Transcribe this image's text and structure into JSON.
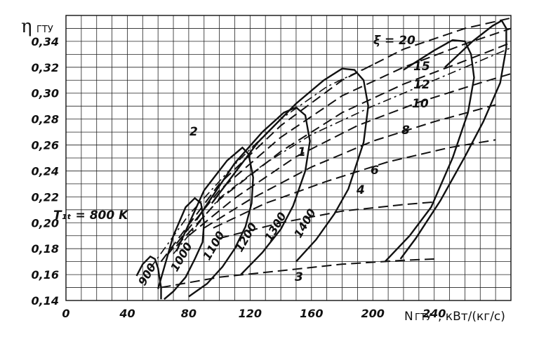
{
  "chart_data": {
    "type": "line",
    "y_label_symbol": "η",
    "y_label_sub": "ГТУ",
    "x_label_main": "N",
    "x_label_sub": "ГТУ",
    "x_label_unit": ", кВт/(кг/с)",
    "xlim": [
      0,
      290
    ],
    "ylim": [
      0.14,
      0.36
    ],
    "x_ticks": [
      "0",
      "40",
      "80",
      "120",
      "160",
      "200",
      "240"
    ],
    "x_tick_values": [
      0,
      40,
      80,
      120,
      160,
      200,
      240
    ],
    "y_ticks": [
      "0,14",
      "0,16",
      "0,18",
      "0,20",
      "0,22",
      "0,24",
      "0,26",
      "0,28",
      "0,30",
      "0,32",
      "0,34"
    ],
    "y_tick_values": [
      0.14,
      0.16,
      0.18,
      0.2,
      0.22,
      0.24,
      0.26,
      0.28,
      0.3,
      0.32,
      0.34
    ],
    "grid": true,
    "temperature_label": "T₁ₜ = 800 K",
    "xi_label": "ξ = 20",
    "temperature_curves": [
      {
        "name": "800",
        "label": "",
        "points": [
          [
            46,
            0.159
          ],
          [
            50,
            0.168
          ],
          [
            55,
            0.174
          ],
          [
            58,
            0.172
          ],
          [
            60,
            0.165
          ],
          [
            61,
            0.157
          ],
          [
            62,
            0.15
          ],
          [
            62,
            0.141
          ]
        ]
      },
      {
        "name": "900",
        "label": "900",
        "points": [
          [
            60,
            0.149
          ],
          [
            70,
            0.19
          ],
          [
            78,
            0.212
          ],
          [
            84,
            0.219
          ],
          [
            88,
            0.215
          ],
          [
            90,
            0.2
          ],
          [
            89,
            0.185
          ],
          [
            84,
            0.172
          ],
          [
            78,
            0.158
          ],
          [
            70,
            0.147
          ],
          [
            64,
            0.141
          ]
        ]
      },
      {
        "name": "1000",
        "label": "1000",
        "points": [
          [
            72,
            0.178
          ],
          [
            90,
            0.225
          ],
          [
            105,
            0.248
          ],
          [
            115,
            0.258
          ],
          [
            119,
            0.253
          ],
          [
            122,
            0.235
          ],
          [
            121,
            0.215
          ],
          [
            117,
            0.197
          ],
          [
            110,
            0.18
          ],
          [
            102,
            0.166
          ],
          [
            92,
            0.153
          ],
          [
            80,
            0.143
          ]
        ]
      },
      {
        "name": "1100",
        "label": "1100",
        "points": [
          [
            85,
            0.202
          ],
          [
            110,
            0.246
          ],
          [
            128,
            0.27
          ],
          [
            142,
            0.285
          ],
          [
            150,
            0.289
          ],
          [
            156,
            0.283
          ],
          [
            159,
            0.263
          ],
          [
            156,
            0.24
          ],
          [
            148,
            0.213
          ],
          [
            140,
            0.195
          ],
          [
            128,
            0.177
          ],
          [
            114,
            0.16
          ]
        ]
      },
      {
        "name": "1200",
        "label": "1200",
        "points": [
          [
            95,
            0.215
          ],
          [
            125,
            0.262
          ],
          [
            150,
            0.292
          ],
          [
            168,
            0.31
          ],
          [
            180,
            0.319
          ],
          [
            188,
            0.318
          ],
          [
            194,
            0.31
          ],
          [
            197,
            0.29
          ],
          [
            194,
            0.262
          ],
          [
            184,
            0.226
          ],
          [
            175,
            0.207
          ],
          [
            163,
            0.187
          ],
          [
            150,
            0.17
          ]
        ]
      },
      {
        "name": "1300",
        "label": "1300",
        "points": [
          [
            220,
            0.318
          ],
          [
            240,
            0.333
          ],
          [
            252,
            0.341
          ],
          [
            260,
            0.34
          ],
          [
            264,
            0.33
          ],
          [
            266,
            0.312
          ],
          [
            262,
            0.285
          ],
          [
            252,
            0.25
          ],
          [
            238,
            0.212
          ],
          [
            224,
            0.19
          ],
          [
            208,
            0.17
          ]
        ]
      },
      {
        "name": "1400",
        "label": "1400",
        "points": [
          [
            247,
            0.32
          ],
          [
            265,
            0.34
          ],
          [
            278,
            0.352
          ],
          [
            284,
            0.356
          ],
          [
            287,
            0.35
          ],
          [
            287,
            0.335
          ],
          [
            283,
            0.308
          ],
          [
            272,
            0.278
          ],
          [
            260,
            0.251
          ],
          [
            244,
            0.217
          ],
          [
            228,
            0.188
          ],
          [
            218,
            0.172
          ]
        ]
      }
    ],
    "xi_curves": [
      {
        "name": "20",
        "label": "",
        "points": [
          [
            62,
            0.17
          ],
          [
            100,
            0.23
          ],
          [
            140,
            0.275
          ],
          [
            180,
            0.31
          ],
          [
            220,
            0.334
          ],
          [
            260,
            0.35
          ],
          [
            290,
            0.358
          ]
        ]
      },
      {
        "name": "15",
        "label": "15",
        "points": [
          [
            66,
            0.175
          ],
          [
            100,
            0.225
          ],
          [
            140,
            0.266
          ],
          [
            180,
            0.298
          ],
          [
            220,
            0.32
          ],
          [
            260,
            0.338
          ],
          [
            290,
            0.35
          ]
        ]
      },
      {
        "name": "12",
        "label": "12",
        "points": [
          [
            72,
            0.182
          ],
          [
            100,
            0.218
          ],
          [
            140,
            0.255
          ],
          [
            180,
            0.285
          ],
          [
            220,
            0.307
          ],
          [
            260,
            0.325
          ],
          [
            290,
            0.339
          ]
        ]
      },
      {
        "name": "10",
        "label": "10",
        "points": [
          [
            80,
            0.19
          ],
          [
            110,
            0.219
          ],
          [
            150,
            0.251
          ],
          [
            190,
            0.275
          ],
          [
            230,
            0.293
          ],
          [
            270,
            0.308
          ],
          [
            290,
            0.315
          ]
        ]
      },
      {
        "name": "8",
        "label": "8",
        "points": [
          [
            90,
            0.196
          ],
          [
            120,
            0.218
          ],
          [
            160,
            0.243
          ],
          [
            200,
            0.263
          ],
          [
            240,
            0.278
          ],
          [
            280,
            0.291
          ]
        ]
      },
      {
        "name": "6",
        "label": "6",
        "points": [
          [
            96,
            0.196
          ],
          [
            130,
            0.215
          ],
          [
            170,
            0.232
          ],
          [
            210,
            0.247
          ],
          [
            250,
            0.258
          ],
          [
            280,
            0.264
          ]
        ]
      },
      {
        "name": "4",
        "label": "4",
        "points": [
          [
            100,
            0.188
          ],
          [
            140,
            0.2
          ],
          [
            180,
            0.209
          ],
          [
            220,
            0.214
          ],
          [
            240,
            0.216
          ]
        ]
      },
      {
        "name": "3",
        "label": "3",
        "points": [
          [
            62,
            0.15
          ],
          [
            100,
            0.158
          ],
          [
            140,
            0.163
          ],
          [
            180,
            0.168
          ],
          [
            220,
            0.171
          ],
          [
            240,
            0.172
          ]
        ]
      }
    ],
    "line_1": {
      "label": "1",
      "points": [
        [
          70,
          0.176
        ],
        [
          100,
          0.219
        ],
        [
          130,
          0.246
        ],
        [
          160,
          0.268
        ],
        [
          200,
          0.29
        ],
        [
          240,
          0.31
        ],
        [
          290,
          0.335
        ]
      ]
    },
    "line_2": {
      "label": "2",
      "points": [
        [
          55,
          0.165
        ],
        [
          80,
          0.206
        ],
        [
          110,
          0.245
        ],
        [
          140,
          0.28
        ],
        [
          170,
          0.305
        ],
        [
          200,
          0.322
        ]
      ]
    },
    "row_label_03": "0,20",
    "row_label_02": "T"
  }
}
